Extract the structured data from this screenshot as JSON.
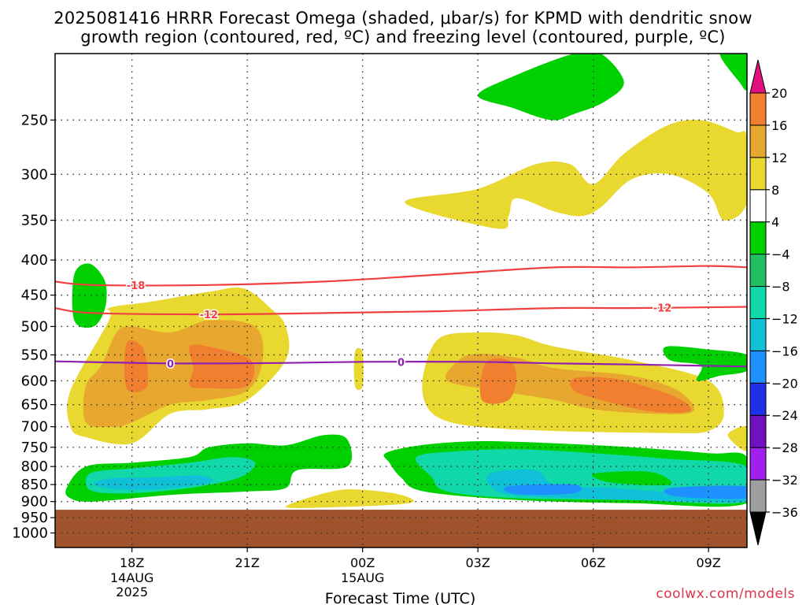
{
  "title": {
    "line1": "2025081416 HRRR Forecast Omega (shaded, μbar/s) for KPMD with dendritic snow",
    "line2": "growth region (contoured, red, ºC) and freezing level (contoured, purple, ºC)"
  },
  "watermark": "coolwx.com/models",
  "chart_data": {
    "type": "heatmap",
    "title": "2025081416 HRRR Forecast Omega (shaded, μbar/s) for KPMD with dendritic snow growth region (contoured, red, ºC) and freezing level (contoured, purple, ºC)",
    "xlabel": "Forecast Time (UTC)",
    "ylabel": "",
    "x_ticks": [
      {
        "label": "18Z",
        "sub1": "14AUG",
        "sub2": "2025",
        "hour": 18
      },
      {
        "label": "21Z",
        "sub1": "",
        "sub2": "",
        "hour": 21
      },
      {
        "label": "00Z",
        "sub1": "15AUG",
        "sub2": "",
        "hour": 24
      },
      {
        "label": "03Z",
        "sub1": "",
        "sub2": "",
        "hour": 27
      },
      {
        "label": "06Z",
        "sub1": "",
        "sub2": "",
        "hour": 30
      },
      {
        "label": "09Z",
        "sub1": "",
        "sub2": "",
        "hour": 33
      }
    ],
    "xlim": [
      16,
      34
    ],
    "y_scale": "log-pressure",
    "ylim_hPa": [
      1050,
      200
    ],
    "y_ticks": [
      250,
      300,
      350,
      400,
      450,
      500,
      550,
      600,
      650,
      700,
      750,
      800,
      850,
      900,
      950,
      1000
    ],
    "grid": true,
    "surface_below_hPa": 925,
    "surface_color": "#a0522d",
    "colorbar": {
      "levels": [
        -36,
        -32,
        -28,
        -24,
        -20,
        -16,
        -12,
        -8,
        -4,
        4,
        8,
        12,
        16,
        20
      ],
      "colors": [
        "#9e9e9e",
        "#a020f0",
        "#7010c0",
        "#2030e8",
        "#1e90ff",
        "#10c0d8",
        "#10d8a8",
        "#20c060",
        "#00d000",
        "#ffffff",
        "#e8d830",
        "#e8a830",
        "#f08030",
        "#f04040",
        "#e0107f"
      ]
    },
    "contours": [
      {
        "label": "-18",
        "color": "#f04040",
        "points": [
          [
            16,
            430
          ],
          [
            17,
            435
          ],
          [
            20,
            435
          ],
          [
            23,
            430
          ],
          [
            26,
            420
          ],
          [
            29,
            410
          ],
          [
            31,
            410
          ],
          [
            33,
            408
          ],
          [
            34,
            410
          ]
        ]
      },
      {
        "label": "-12",
        "color": "#f04040",
        "points": [
          [
            16,
            470
          ],
          [
            17,
            478
          ],
          [
            20,
            480
          ],
          [
            23,
            478
          ],
          [
            26,
            475
          ],
          [
            29,
            470
          ],
          [
            31,
            470
          ],
          [
            34,
            468
          ]
        ]
      },
      {
        "label": "0",
        "color": "#9020b0",
        "points": [
          [
            16,
            562
          ],
          [
            19,
            566
          ],
          [
            22,
            565
          ],
          [
            24,
            563
          ],
          [
            27,
            563
          ],
          [
            29,
            566
          ],
          [
            31,
            568
          ],
          [
            34,
            572
          ]
        ]
      }
    ],
    "omega_regions": [
      {
        "value": 4,
        "color": "#e8d830",
        "points": [
          [
            16.4,
            700
          ],
          [
            16.4,
            620
          ],
          [
            17.4,
            490
          ],
          [
            17.4,
            470
          ],
          [
            18.5,
            460
          ],
          [
            20,
            445
          ],
          [
            20.9,
            440
          ],
          [
            21.6,
            470
          ],
          [
            22,
            500
          ],
          [
            22,
            560
          ],
          [
            21,
            640
          ],
          [
            20,
            660
          ],
          [
            19,
            670
          ],
          [
            18,
            740
          ],
          [
            16.8,
            725
          ]
        ]
      },
      {
        "value": 8,
        "color": "#e8a830",
        "points": [
          [
            16.8,
            690
          ],
          [
            16.8,
            610
          ],
          [
            17.2,
            570
          ],
          [
            17.6,
            510
          ],
          [
            18,
            500
          ],
          [
            19,
            510
          ],
          [
            20,
            490
          ],
          [
            21.2,
            500
          ],
          [
            21.4,
            560
          ],
          [
            21,
            620
          ],
          [
            20,
            640
          ],
          [
            19,
            650
          ],
          [
            18,
            690
          ],
          [
            17.5,
            700
          ]
        ]
      },
      {
        "value": 12,
        "color": "#f08030",
        "points": [
          [
            17.9,
            525
          ],
          [
            18.3,
            540
          ],
          [
            18.4,
            610
          ],
          [
            17.9,
            620
          ],
          [
            17.8,
            570
          ]
        ]
      },
      {
        "value": 12,
        "color": "#f08030",
        "points": [
          [
            19.5,
            535
          ],
          [
            20,
            535
          ],
          [
            21.1,
            560
          ],
          [
            21,
            610
          ],
          [
            20,
            615
          ],
          [
            19.5,
            610
          ],
          [
            19.6,
            575
          ]
        ]
      },
      {
        "value": 4,
        "color": "#e8d830",
        "points": [
          [
            23.8,
            545
          ],
          [
            24,
            545
          ],
          [
            24,
            610
          ],
          [
            23.8,
            610
          ]
        ]
      },
      {
        "value": 4,
        "color": "#e8d830",
        "points": [
          [
            25.6,
            580
          ],
          [
            26,
            520
          ],
          [
            27,
            510
          ],
          [
            28,
            515
          ],
          [
            29,
            535
          ],
          [
            31,
            560
          ],
          [
            33,
            600
          ],
          [
            33.4,
            670
          ],
          [
            33,
            710
          ],
          [
            32,
            715
          ],
          [
            29,
            710
          ],
          [
            27,
            700
          ],
          [
            26,
            680
          ],
          [
            25.6,
            640
          ]
        ]
      },
      {
        "value": 8,
        "color": "#e8a830",
        "points": [
          [
            26.2,
            600
          ],
          [
            26.5,
            560
          ],
          [
            27,
            548
          ],
          [
            28,
            555
          ],
          [
            29,
            575
          ],
          [
            31,
            590
          ],
          [
            32.2,
            620
          ],
          [
            32.6,
            665
          ],
          [
            31.5,
            670
          ],
          [
            30,
            660
          ],
          [
            29,
            640
          ],
          [
            27.5,
            620
          ]
        ]
      },
      {
        "value": 12,
        "color": "#f08030",
        "points": [
          [
            27.2,
            565
          ],
          [
            27.8,
            560
          ],
          [
            28,
            590
          ],
          [
            27.8,
            640
          ],
          [
            27.1,
            640
          ]
        ]
      },
      {
        "value": 12,
        "color": "#f08030",
        "points": [
          [
            29.5,
            595
          ],
          [
            30.5,
            595
          ],
          [
            31.5,
            615
          ],
          [
            32.3,
            640
          ],
          [
            32.5,
            665
          ],
          [
            31.5,
            665
          ],
          [
            30.2,
            640
          ],
          [
            29.5,
            620
          ]
        ]
      },
      {
        "value": 4,
        "color": "#e8d830",
        "points": [
          [
            22,
            915
          ],
          [
            23.2,
            870
          ],
          [
            24,
            865
          ],
          [
            25,
            880
          ],
          [
            25.2,
            905
          ],
          [
            23,
            918
          ]
        ]
      },
      {
        "value": 4,
        "color": "#e8d830",
        "points": [
          [
            33.5,
            720
          ],
          [
            34,
            700
          ],
          [
            34,
            760
          ]
        ]
      },
      {
        "value": 4,
        "color": "#e8d830",
        "points": [
          [
            25.1,
            330
          ],
          [
            27,
            315
          ],
          [
            28.5,
            290
          ],
          [
            29.4,
            290
          ],
          [
            30,
            310
          ],
          [
            30.8,
            280
          ],
          [
            31.9,
            255
          ],
          [
            32.8,
            250
          ],
          [
            33.7,
            260
          ],
          [
            34,
            265
          ],
          [
            34,
            330
          ],
          [
            33.4,
            350
          ],
          [
            33,
            320
          ],
          [
            32,
            300
          ],
          [
            31,
            305
          ],
          [
            30.2,
            335
          ],
          [
            29.7,
            345
          ],
          [
            29,
            340
          ],
          [
            28,
            325
          ],
          [
            27.8,
            345
          ],
          [
            27.5,
            360
          ]
        ]
      },
      {
        "value": -4,
        "color": "#00d000",
        "points": [
          [
            16.5,
            490
          ],
          [
            16.5,
            420
          ],
          [
            16.9,
            405
          ],
          [
            17.3,
            430
          ],
          [
            17.3,
            470
          ],
          [
            17,
            500
          ]
        ]
      },
      {
        "value": -4,
        "color": "#00d000",
        "points": [
          [
            16.3,
            860
          ],
          [
            16.8,
            800
          ],
          [
            18,
            790
          ],
          [
            19.5,
            775
          ],
          [
            20,
            750
          ],
          [
            21,
            740
          ],
          [
            22,
            745
          ],
          [
            23,
            720
          ],
          [
            23.6,
            730
          ],
          [
            23.6,
            800
          ],
          [
            22.3,
            810
          ],
          [
            22,
            860
          ],
          [
            21,
            870
          ],
          [
            19,
            880
          ],
          [
            17,
            900
          ],
          [
            16.4,
            890
          ]
        ]
      },
      {
        "value": -8,
        "color": "#10d8a8",
        "points": [
          [
            16.8,
            840
          ],
          [
            17,
            815
          ],
          [
            18,
            805
          ],
          [
            19.5,
            790
          ],
          [
            20.6,
            775
          ],
          [
            21.2,
            790
          ],
          [
            20.8,
            830
          ],
          [
            19.5,
            860
          ],
          [
            18,
            875
          ],
          [
            17,
            870
          ]
        ]
      },
      {
        "value": -12,
        "color": "#10c0d8",
        "points": [
          [
            17,
            845
          ],
          [
            17.5,
            832
          ],
          [
            18.5,
            830
          ],
          [
            19.8,
            825
          ],
          [
            20,
            845
          ],
          [
            18.5,
            865
          ],
          [
            17.3,
            860
          ]
        ]
      },
      {
        "value": -4,
        "color": "#00d000",
        "points": [
          [
            24.6,
            765
          ],
          [
            25.5,
            745
          ],
          [
            27,
            735
          ],
          [
            29,
            740
          ],
          [
            31,
            750
          ],
          [
            33,
            765
          ],
          [
            34,
            775
          ],
          [
            34,
            905
          ],
          [
            31,
            905
          ],
          [
            28,
            895
          ],
          [
            25.6,
            870
          ],
          [
            25,
            830
          ],
          [
            24.7,
            790
          ]
        ]
      },
      {
        "value": -8,
        "color": "#10d8a8",
        "points": [
          [
            25.4,
            775
          ],
          [
            26.5,
            760
          ],
          [
            28,
            755
          ],
          [
            30,
            765
          ],
          [
            32,
            780
          ],
          [
            34,
            800
          ],
          [
            34,
            900
          ],
          [
            31,
            895
          ],
          [
            28,
            890
          ],
          [
            26.2,
            870
          ],
          [
            25.8,
            830
          ]
        ]
      },
      {
        "value": -12,
        "color": "#10c0d8",
        "points": [
          [
            27.3,
            820
          ],
          [
            28.5,
            810
          ],
          [
            29,
            850
          ],
          [
            30.5,
            860
          ],
          [
            32,
            870
          ],
          [
            34,
            860
          ],
          [
            34,
            900
          ],
          [
            31,
            895
          ],
          [
            28.5,
            885
          ],
          [
            27.5,
            870
          ]
        ]
      },
      {
        "value": -16,
        "color": "#1e90ff",
        "points": [
          [
            27.8,
            855
          ],
          [
            29.5,
            850
          ],
          [
            29.5,
            875
          ],
          [
            28,
            878
          ]
        ]
      },
      {
        "value": -16,
        "color": "#1e90ff",
        "points": [
          [
            32,
            860
          ],
          [
            34,
            855
          ],
          [
            34,
            890
          ],
          [
            32.2,
            885
          ]
        ]
      },
      {
        "value": -4,
        "color": "#00d000",
        "points": [
          [
            30,
            820
          ],
          [
            31.5,
            815
          ],
          [
            32,
            850
          ],
          [
            30.5,
            845
          ]
        ]
      },
      {
        "value": -4,
        "color": "#00d000",
        "points": [
          [
            31.9,
            535
          ],
          [
            33,
            540
          ],
          [
            34,
            550
          ],
          [
            34,
            580
          ],
          [
            33.3,
            590
          ],
          [
            32.7,
            600
          ],
          [
            32.8,
            570
          ],
          [
            32,
            560
          ]
        ]
      },
      {
        "value": -4,
        "color": "#00d000",
        "points": [
          [
            27,
            230
          ],
          [
            28,
            215
          ],
          [
            29.5,
            200
          ],
          [
            30.2,
            200
          ],
          [
            30.8,
            220
          ],
          [
            30.3,
            235
          ],
          [
            29.5,
            245
          ],
          [
            28.9,
            250
          ],
          [
            27.9,
            240
          ]
        ]
      },
      {
        "value": -4,
        "color": "#00d000",
        "points": [
          [
            33.3,
            200
          ],
          [
            34,
            200
          ],
          [
            34,
            225
          ],
          [
            33.8,
            220
          ]
        ]
      }
    ]
  }
}
